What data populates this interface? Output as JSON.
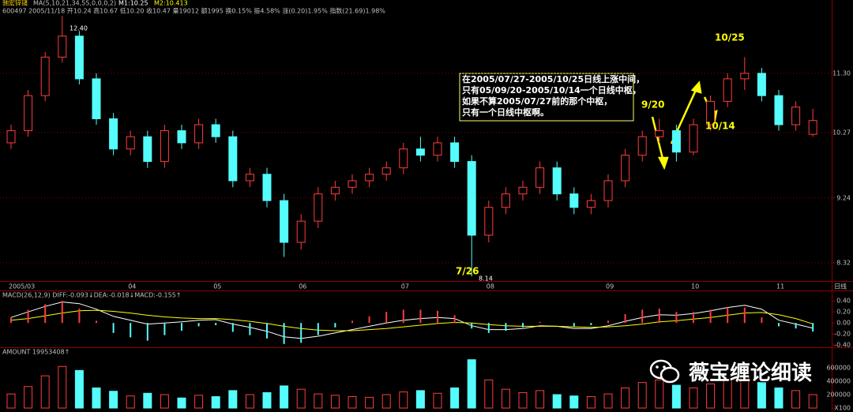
{
  "header": {
    "name": "驰宏锌锗",
    "ma": "MA(5,10,21,34,55,0,0,0,2)",
    "m1": "M1:10.25",
    "m2": "M2:10.413",
    "info": "600497  2005/11/18 开10.24 高10.67 低10.20 收10.47 量19012 额1995 换0.15% 振4.58% 涨(0.20)1.95% 指数(21.69)1.98%"
  },
  "watermark": "薇宝缠论细读",
  "chart_data": [
    {
      "type": "candlestick",
      "log_scale": true,
      "grid": true,
      "x_label": "日线",
      "up_color": "#ff3c3c",
      "down_color": "#54fcfc",
      "open": [
        10.1,
        10.3,
        10.9,
        11.6,
        12.0,
        11.2,
        10.5,
        10.0,
        10.2,
        9.8,
        10.3,
        10.1,
        10.4,
        10.2,
        9.5,
        9.6,
        9.2,
        8.6,
        8.9,
        9.3,
        9.4,
        9.5,
        9.6,
        9.7,
        10.0,
        9.9,
        10.1,
        9.8,
        8.7,
        9.1,
        9.3,
        9.4,
        9.7,
        9.3,
        9.1,
        9.2,
        9.5,
        9.9,
        10.2,
        10.3,
        9.95,
        10.4,
        10.8,
        11.2,
        11.3,
        10.9,
        10.4,
        10.24
      ],
      "high": [
        10.4,
        11.0,
        11.7,
        12.4,
        12.1,
        11.3,
        10.6,
        10.3,
        10.3,
        10.4,
        10.4,
        10.5,
        10.5,
        10.3,
        9.7,
        9.7,
        9.3,
        9.0,
        9.4,
        9.5,
        9.6,
        9.7,
        9.8,
        10.1,
        10.2,
        10.2,
        10.2,
        9.9,
        9.2,
        9.4,
        9.5,
        9.8,
        9.8,
        9.4,
        9.3,
        9.6,
        10.0,
        10.3,
        10.5,
        10.4,
        10.5,
        10.9,
        11.3,
        11.6,
        11.4,
        11.0,
        10.8,
        10.67
      ],
      "low": [
        10.0,
        10.2,
        10.8,
        11.5,
        11.1,
        10.4,
        9.9,
        9.9,
        9.7,
        9.7,
        10.0,
        10.0,
        10.1,
        9.4,
        9.4,
        9.1,
        8.4,
        8.5,
        8.8,
        9.2,
        9.3,
        9.4,
        9.5,
        9.6,
        9.8,
        9.8,
        9.7,
        8.14,
        8.6,
        9.0,
        9.2,
        9.3,
        9.2,
        9.0,
        9.0,
        9.1,
        9.4,
        9.8,
        10.1,
        9.8,
        9.9,
        10.3,
        10.7,
        11.0,
        10.8,
        10.3,
        10.3,
        10.2
      ],
      "close": [
        10.3,
        10.9,
        11.6,
        12.0,
        11.2,
        10.5,
        10.0,
        10.2,
        9.8,
        10.3,
        10.1,
        10.4,
        10.2,
        9.5,
        9.6,
        9.2,
        8.6,
        8.9,
        9.3,
        9.4,
        9.5,
        9.6,
        9.7,
        10.0,
        9.9,
        10.1,
        9.8,
        8.7,
        9.1,
        9.3,
        9.4,
        9.7,
        9.3,
        9.1,
        9.2,
        9.5,
        9.9,
        10.2,
        10.3,
        9.95,
        10.4,
        10.8,
        11.2,
        11.3,
        10.9,
        10.4,
        10.7,
        10.47
      ],
      "ylim": [
        8.09,
        12.64
      ],
      "yticks": [
        {
          "value": 11.3,
          "label": "11.30"
        },
        10.27,
        9.24,
        8.32
      ],
      "xticks": [
        {
          "value": 0,
          "label": "2005/03"
        },
        {
          "value": 7,
          "label": "04"
        },
        {
          "value": 12,
          "label": "05"
        },
        {
          "value": 17,
          "label": "06"
        },
        {
          "value": 23,
          "label": "07"
        },
        {
          "value": 28,
          "label": "08"
        },
        {
          "value": 35,
          "label": "09"
        },
        {
          "value": 40,
          "label": "10"
        },
        {
          "value": 45,
          "label": "11"
        }
      ],
      "annotations": [
        "12.40",
        "8.14",
        "7/26",
        "9/20",
        "10/25",
        "10/14"
      ],
      "note": [
        "在2005/07/27-2005/10/25日线上涨中间，",
        "只有05/09/20-2005/10/14一个日线中枢，",
        "如果不算2005/07/27前的那个中枢，",
        "只有一个日线中枢啊。"
      ]
    },
    {
      "type": "macd",
      "title": "MACD(26,12,9) DIFF:-0.093↓DEA:-0.018↓MACD:-0.155↑",
      "ylim": [
        -0.44,
        0.56
      ],
      "yticks": [
        {
          "value": 0.4,
          "label": "0.40"
        },
        {
          "value": 0.2,
          "label": "0.20"
        },
        {
          "value": 0,
          "label": "0.00"
        },
        {
          "value": -0.2,
          "label": "-0.20"
        },
        {
          "value": -0.4,
          "label": "-0.40"
        }
      ],
      "up_color": "#ff3c3c",
      "down_color": "#54fcfc",
      "series": [
        {
          "color": "#ffffff",
          "values": [
            0.1,
            0.2,
            0.3,
            0.38,
            0.35,
            0.25,
            0.12,
            0.05,
            -0.02,
            0.0,
            0.02,
            0.05,
            0.06,
            -0.02,
            -0.08,
            -0.15,
            -0.25,
            -0.28,
            -0.24,
            -0.18,
            -0.12,
            -0.06,
            0.0,
            0.05,
            0.08,
            0.1,
            0.08,
            -0.05,
            -0.12,
            -0.12,
            -0.1,
            -0.05,
            -0.06,
            -0.1,
            -0.1,
            -0.05,
            0.03,
            0.1,
            0.15,
            0.14,
            0.17,
            0.22,
            0.28,
            0.32,
            0.25,
            0.05,
            -0.02,
            -0.093
          ]
        },
        {
          "color": "#ffff00",
          "values": [
            0.05,
            0.08,
            0.13,
            0.18,
            0.22,
            0.23,
            0.21,
            0.18,
            0.14,
            0.11,
            0.09,
            0.08,
            0.08,
            0.06,
            0.03,
            -0.01,
            -0.06,
            -0.1,
            -0.13,
            -0.14,
            -0.14,
            -0.12,
            -0.1,
            -0.07,
            -0.04,
            -0.01,
            0.01,
            0.0,
            -0.03,
            -0.05,
            -0.06,
            -0.06,
            -0.06,
            -0.07,
            -0.08,
            -0.07,
            -0.05,
            -0.02,
            0.02,
            0.04,
            0.07,
            0.1,
            0.14,
            0.18,
            0.19,
            0.15,
            0.08,
            -0.018
          ]
        },
        {
          "bars": true,
          "values": [
            0.1,
            0.24,
            0.34,
            0.4,
            0.26,
            0.04,
            -0.18,
            -0.26,
            -0.32,
            -0.22,
            -0.14,
            -0.06,
            -0.04,
            -0.16,
            -0.22,
            -0.28,
            -0.38,
            -0.36,
            -0.22,
            -0.08,
            0.04,
            0.12,
            0.2,
            0.24,
            0.24,
            0.22,
            0.14,
            -0.1,
            -0.18,
            -0.14,
            -0.08,
            0.02,
            0.0,
            -0.06,
            -0.04,
            0.04,
            0.16,
            0.24,
            0.26,
            0.2,
            0.2,
            0.24,
            0.28,
            0.28,
            0.1,
            -0.06,
            -0.1,
            -0.155
          ]
        }
      ]
    },
    {
      "type": "bar",
      "title": "AMOUNT 19953408↑",
      "ylim": [
        0,
        905000
      ],
      "yticks": [
        600000,
        400000,
        200000,
        {
          "value": 0,
          "label": "X100"
        }
      ],
      "values": [
        210000,
        320000,
        480000,
        620000,
        560000,
        300000,
        250000,
        180000,
        220000,
        200000,
        150000,
        190000,
        170000,
        260000,
        200000,
        230000,
        330000,
        280000,
        210000,
        190000,
        170000,
        160000,
        200000,
        240000,
        260000,
        220000,
        300000,
        720000,
        420000,
        280000,
        230000,
        260000,
        200000,
        180000,
        170000,
        210000,
        300000,
        380000,
        420000,
        340000,
        300000,
        360000,
        420000,
        460000,
        380000,
        300000,
        260000,
        200000
      ]
    }
  ]
}
